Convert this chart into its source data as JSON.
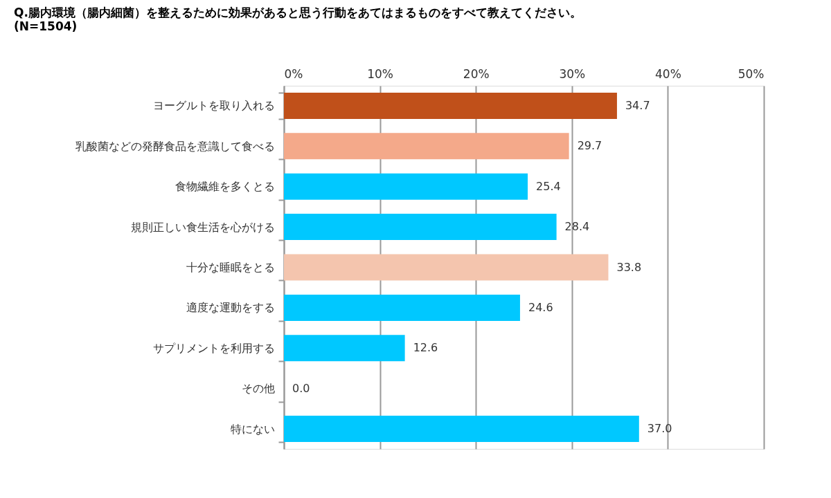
{
  "chart_data": {
    "type": "bar",
    "orientation": "horizontal",
    "title": "Q.腸内環境（腸内細菌）を整えるために効果があると思う行動をあてはまるものをすべて教えてください。",
    "subtitle": "(N=1504)",
    "categories": [
      "ヨーグルトを取り入れる",
      "乳酸菌などの発酵食品を意識して食べる",
      "食物繊維を多くとる",
      "規則正しい食生活を心がける",
      "十分な睡眠をとる",
      "適度な運動をする",
      "サプリメントを利用する",
      "その他",
      "特にない"
    ],
    "values": [
      34.7,
      29.7,
      25.4,
      28.4,
      33.8,
      24.6,
      12.6,
      0.0,
      37.0
    ],
    "value_labels": [
      "34.7",
      "29.7",
      "25.4",
      "28.4",
      "33.8",
      "24.6",
      "12.6",
      "0.0",
      "37.0"
    ],
    "colors": [
      "#c0501a",
      "#f4a98a",
      "#00c8ff",
      "#00c8ff",
      "#f4c5ae",
      "#00c8ff",
      "#00c8ff",
      "#00c8ff",
      "#00c8ff"
    ],
    "xlim": [
      0,
      50
    ],
    "xticks": [
      {
        "value": 0,
        "label": "0%"
      },
      {
        "value": 10,
        "label": "10%"
      },
      {
        "value": 20,
        "label": "20%"
      },
      {
        "value": 30,
        "label": "30%"
      },
      {
        "value": 40,
        "label": "40%"
      },
      {
        "value": 50,
        "label": "50%"
      }
    ],
    "grid": "x",
    "legend": false
  }
}
